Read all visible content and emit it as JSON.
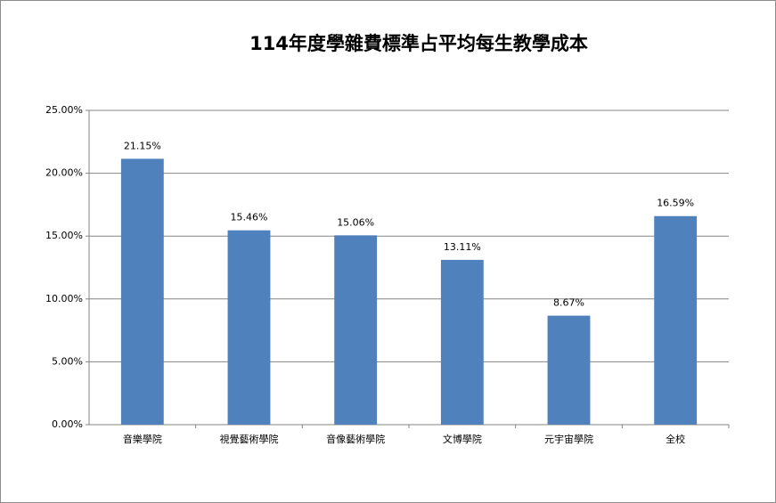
{
  "chart_data": {
    "type": "bar",
    "title": "114年度學雜費標準占平均每生教學成本",
    "categories": [
      "音樂學院",
      "視覺藝術學院",
      "音像藝術學院",
      "文博學院",
      "元宇宙學院",
      "全校"
    ],
    "values": [
      21.15,
      15.46,
      15.06,
      13.11,
      8.67,
      16.59
    ],
    "value_labels": [
      "21.15%",
      "15.46%",
      "15.06%",
      "13.11%",
      "8.67%",
      "16.59%"
    ],
    "color": "#4f81bd",
    "ylim": [
      0,
      25
    ],
    "yticks": [
      {
        "value": 0,
        "label": "0.00%"
      },
      {
        "value": 5,
        "label": "5.00%"
      },
      {
        "value": 10,
        "label": "10.00%"
      },
      {
        "value": 15,
        "label": "15.00%"
      },
      {
        "value": 20,
        "label": "20.00%"
      },
      {
        "value": 25,
        "label": "25.00%"
      }
    ],
    "grid": true
  }
}
